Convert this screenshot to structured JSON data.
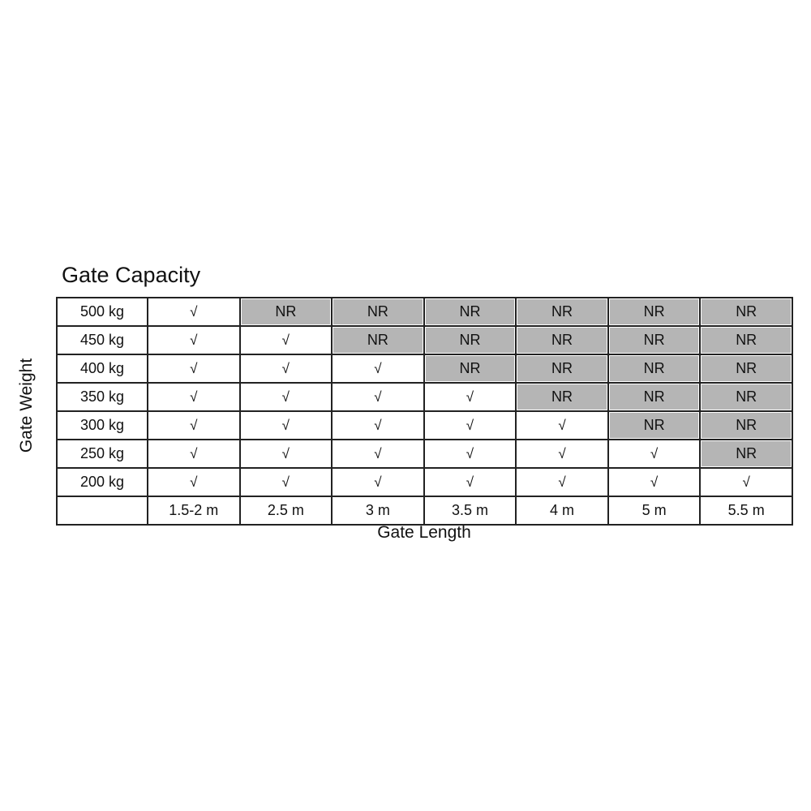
{
  "chart_data": {
    "type": "table",
    "title": "Gate Capacity",
    "xlabel": "Gate Length",
    "ylabel": "Gate Weight",
    "columns": [
      "1.5-2 m",
      "2.5 m",
      "3 m",
      "3.5 m",
      "4 m",
      "5 m",
      "5.5 m"
    ],
    "rows": [
      {
        "label": "500 kg",
        "cells": [
          "√",
          "NR",
          "NR",
          "NR",
          "NR",
          "NR",
          "NR"
        ]
      },
      {
        "label": "450 kg",
        "cells": [
          "√",
          "√",
          "NR",
          "NR",
          "NR",
          "NR",
          "NR"
        ]
      },
      {
        "label": "400 kg",
        "cells": [
          "√",
          "√",
          "√",
          "NR",
          "NR",
          "NR",
          "NR"
        ]
      },
      {
        "label": "350 kg",
        "cells": [
          "√",
          "√",
          "√",
          "√",
          "NR",
          "NR",
          "NR"
        ]
      },
      {
        "label": "300 kg",
        "cells": [
          "√",
          "√",
          "√",
          "√",
          "√",
          "NR",
          "NR"
        ]
      },
      {
        "label": "250 kg",
        "cells": [
          "√",
          "√",
          "√",
          "√",
          "√",
          "√",
          "NR"
        ]
      },
      {
        "label": "200 kg",
        "cells": [
          "√",
          "√",
          "√",
          "√",
          "√",
          "√",
          "√"
        ]
      }
    ],
    "colors": {
      "nr_fill": "#b5b5b5",
      "border": "#222222"
    }
  }
}
